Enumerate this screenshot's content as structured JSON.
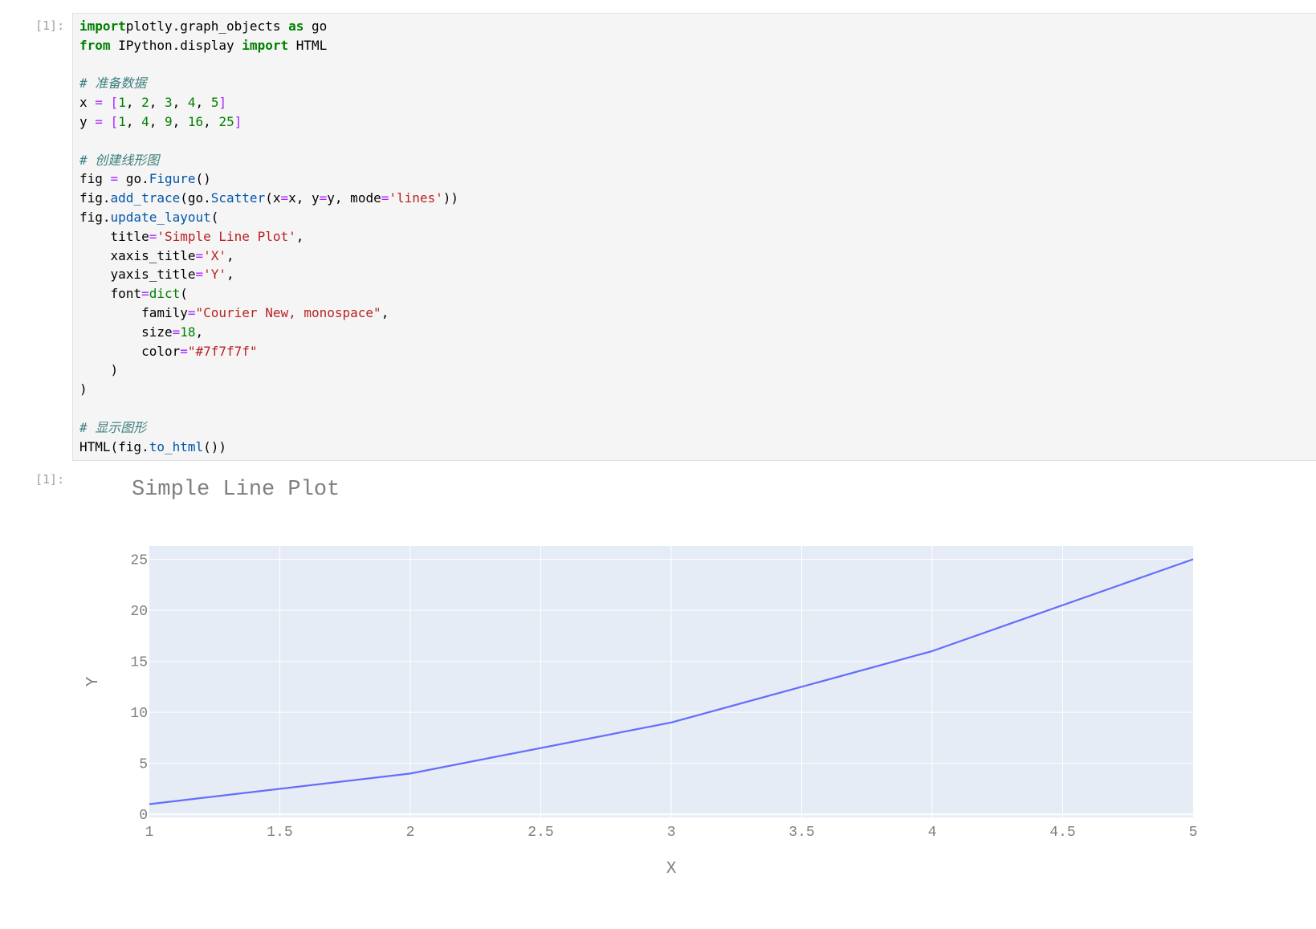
{
  "input_prompt": "[1]:",
  "output_prompt": "[1]:",
  "code_lines": [
    [
      [
        "kw",
        "import"
      ],
      [
        "",
        "plotly.graph_objects "
      ],
      [
        "kw",
        "as"
      ],
      [
        "",
        " go"
      ]
    ],
    [
      [
        "kw",
        "from"
      ],
      [
        "",
        " IPython.display "
      ],
      [
        "kw",
        "import"
      ],
      [
        "",
        " HTML"
      ]
    ],
    [],
    [
      [
        "cm",
        "# 准备数据"
      ]
    ],
    [
      [
        "",
        "x "
      ],
      [
        "op",
        "="
      ],
      [
        "",
        " "
      ],
      [
        "op",
        "["
      ],
      [
        "nu",
        "1"
      ],
      [
        "",
        ", "
      ],
      [
        "nu",
        "2"
      ],
      [
        "",
        ", "
      ],
      [
        "nu",
        "3"
      ],
      [
        "",
        ", "
      ],
      [
        "nu",
        "4"
      ],
      [
        "",
        ", "
      ],
      [
        "nu",
        "5"
      ],
      [
        "op",
        "]"
      ]
    ],
    [
      [
        "",
        "y "
      ],
      [
        "op",
        "="
      ],
      [
        "",
        " "
      ],
      [
        "op",
        "["
      ],
      [
        "nu",
        "1"
      ],
      [
        "",
        ", "
      ],
      [
        "nu",
        "4"
      ],
      [
        "",
        ", "
      ],
      [
        "nu",
        "9"
      ],
      [
        "",
        ", "
      ],
      [
        "nu",
        "16"
      ],
      [
        "",
        ", "
      ],
      [
        "nu",
        "25"
      ],
      [
        "op",
        "]"
      ]
    ],
    [],
    [
      [
        "cm",
        "# 创建线形图"
      ]
    ],
    [
      [
        "",
        "fig "
      ],
      [
        "op",
        "="
      ],
      [
        "",
        " go."
      ],
      [
        "fn",
        "Figure"
      ],
      [
        "",
        "()"
      ]
    ],
    [
      [
        "",
        "fig."
      ],
      [
        "fn",
        "add_trace"
      ],
      [
        "",
        "(go."
      ],
      [
        "fn",
        "Scatter"
      ],
      [
        "",
        "(x"
      ],
      [
        "op",
        "="
      ],
      [
        "",
        "x, y"
      ],
      [
        "op",
        "="
      ],
      [
        "",
        "y, mode"
      ],
      [
        "op",
        "="
      ],
      [
        "st",
        "'lines'"
      ],
      [
        "",
        "))"
      ]
    ],
    [
      [
        "",
        "fig."
      ],
      [
        "fn",
        "update_layout"
      ],
      [
        "",
        "("
      ]
    ],
    [
      [
        "",
        "    title"
      ],
      [
        "op",
        "="
      ],
      [
        "st",
        "'Simple Line Plot'"
      ],
      [
        "",
        ","
      ]
    ],
    [
      [
        "",
        "    xaxis_title"
      ],
      [
        "op",
        "="
      ],
      [
        "st",
        "'X'"
      ],
      [
        "",
        ","
      ]
    ],
    [
      [
        "",
        "    yaxis_title"
      ],
      [
        "op",
        "="
      ],
      [
        "st",
        "'Y'"
      ],
      [
        "",
        ","
      ]
    ],
    [
      [
        "",
        "    font"
      ],
      [
        "op",
        "="
      ],
      [
        "bi",
        "dict"
      ],
      [
        "",
        "("
      ]
    ],
    [
      [
        "",
        "        family"
      ],
      [
        "op",
        "="
      ],
      [
        "st",
        "\"Courier New, monospace\""
      ],
      [
        "",
        ","
      ]
    ],
    [
      [
        "",
        "        size"
      ],
      [
        "op",
        "="
      ],
      [
        "nu",
        "18"
      ],
      [
        "",
        ","
      ]
    ],
    [
      [
        "",
        "        color"
      ],
      [
        "op",
        "="
      ],
      [
        "st",
        "\"#7f7f7f\""
      ]
    ],
    [
      [
        "",
        "    )"
      ]
    ],
    [
      [
        "",
        ")"
      ]
    ],
    [],
    [
      [
        "cm",
        "# 显示图形"
      ]
    ],
    [
      [
        "",
        "HTML(fig."
      ],
      [
        "fn",
        "to_html"
      ],
      [
        "",
        "())"
      ]
    ]
  ],
  "chart_data": {
    "type": "line",
    "title": "Simple Line Plot",
    "xlabel": "X",
    "ylabel": "Y",
    "x": [
      1,
      2,
      3,
      4,
      5
    ],
    "series": [
      {
        "values": [
          1,
          4,
          9,
          16,
          25
        ]
      }
    ],
    "xlim": [
      1,
      5
    ],
    "ylim": [
      -0.3,
      26.3
    ],
    "xticks": [
      "1",
      "1.5",
      "2",
      "2.5",
      "3",
      "3.5",
      "4",
      "4.5",
      "5"
    ],
    "yticks": [
      "0",
      "5",
      "10",
      "15",
      "20",
      "25"
    ],
    "grid": true,
    "colors": {
      "line": "#636efa",
      "plot_bg": "#e5ecf6",
      "text": "#7f7f7f",
      "grid": "#ffffff"
    }
  }
}
